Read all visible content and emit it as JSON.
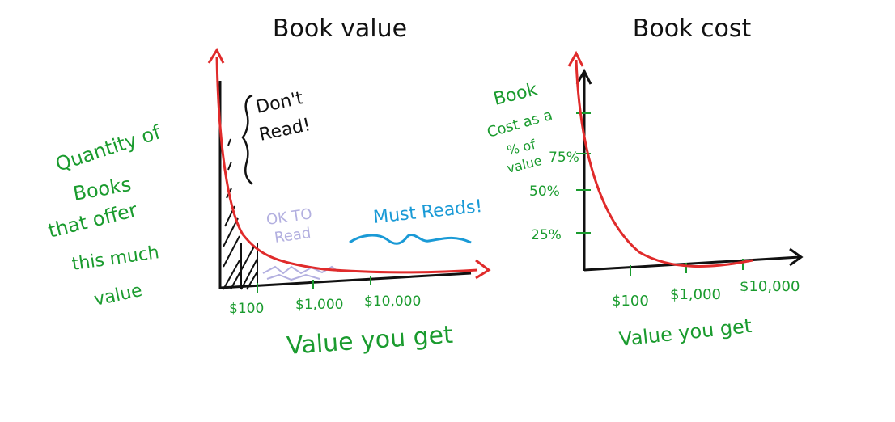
{
  "colors": {
    "ink": "#111111",
    "red": "#e02b2b",
    "green": "#1a9b2e",
    "blue": "#1a9ad6",
    "lavender": "#b3b0e0"
  },
  "left_chart": {
    "title": "Book value",
    "y_label_lines": [
      "Quantity of",
      "Books",
      "that offer",
      "this much",
      "value"
    ],
    "x_label": "Value you get",
    "x_ticks": [
      "$100",
      "$1,000",
      "$10,000"
    ],
    "annotations": {
      "dont_read": [
        "Don't",
        "Read!"
      ],
      "ok_to_read": [
        "OK TO",
        "Read"
      ],
      "must_reads": "Must Reads!"
    }
  },
  "right_chart": {
    "title": "Book cost",
    "y_label_lines": [
      "Book",
      "Cost as a",
      "% of",
      "value"
    ],
    "y_ticks": [
      "75%",
      "50%",
      "25%"
    ],
    "x_ticks": [
      "$100",
      "$1,000",
      "$10,000"
    ],
    "x_label": "Value you get"
  }
}
